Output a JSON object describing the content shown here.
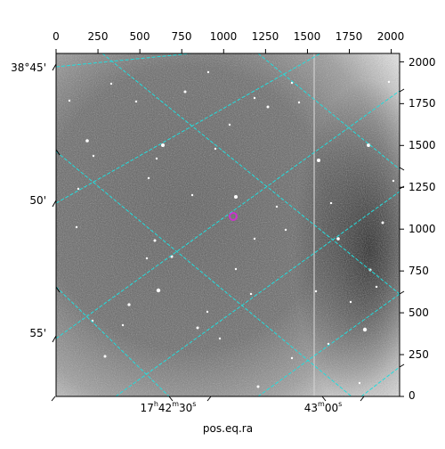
{
  "figure": {
    "xlabel": "pos.eq.ra",
    "ticks": {
      "top": [
        {
          "label": "0",
          "value": 0
        },
        {
          "label": "250",
          "value": 250
        },
        {
          "label": "500",
          "value": 500
        },
        {
          "label": "750",
          "value": 750
        },
        {
          "label": "1000",
          "value": 1000
        },
        {
          "label": "1250",
          "value": 1250
        },
        {
          "label": "1500",
          "value": 1500
        },
        {
          "label": "1750",
          "value": 1750
        },
        {
          "label": "2000",
          "value": 2000
        }
      ],
      "right": [
        {
          "label": "0",
          "value": 0
        },
        {
          "label": "250",
          "value": 250
        },
        {
          "label": "500",
          "value": 500
        },
        {
          "label": "750",
          "value": 750
        },
        {
          "label": "1000",
          "value": 1000
        },
        {
          "label": "1250",
          "value": 1250
        },
        {
          "label": "1500",
          "value": 1500
        },
        {
          "label": "1750",
          "value": 1750
        },
        {
          "label": "2000",
          "value": 2000
        }
      ],
      "left": [
        {
          "label": "38°45'"
        },
        {
          "label": "50'"
        },
        {
          "label": "55'"
        }
      ],
      "bottom": [
        {
          "h": "17",
          "hs": "h",
          "m": "42",
          "ms": "m",
          "s": "30",
          "ss": "s"
        },
        {
          "h": "",
          "hs": "",
          "m": "43",
          "ms": "m",
          "s": "00",
          "ss": "s"
        }
      ]
    },
    "colors": {
      "grid": "#22dddd",
      "marker": "#cc33cc",
      "background": "#ffffff"
    }
  }
}
